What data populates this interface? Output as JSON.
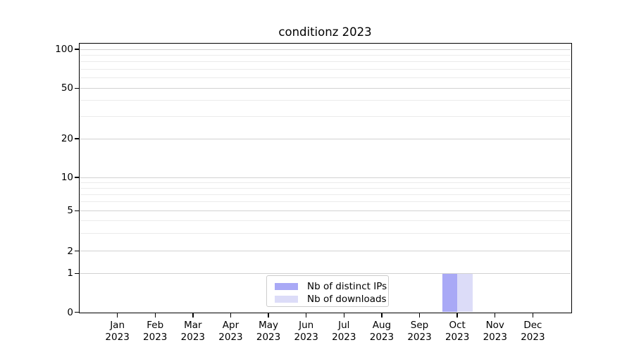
{
  "figure": {
    "background": "#ffffff"
  },
  "chart_data": {
    "type": "bar",
    "title": "conditionz 2023",
    "categories": [
      "Jan\n2023",
      "Feb\n2023",
      "Mar\n2023",
      "Apr\n2023",
      "May\n2023",
      "Jun\n2023",
      "Jul\n2023",
      "Aug\n2023",
      "Sep\n2023",
      "Oct\n2023",
      "Nov\n2023",
      "Dec\n2023"
    ],
    "series": [
      {
        "name": "Nb of distinct IPs",
        "color": "#a9a9f6",
        "values": [
          0,
          0,
          0,
          0,
          0,
          0,
          0,
          0,
          0,
          1,
          0,
          0
        ]
      },
      {
        "name": "Nb of downloads",
        "color": "#dcdcf8",
        "values": [
          0,
          0,
          0,
          0,
          0,
          0,
          0,
          0,
          0,
          1,
          0,
          0
        ]
      }
    ],
    "xlabel": "",
    "ylabel": "",
    "yscale": "symlog",
    "y_ticks": [
      0,
      1,
      2,
      5,
      10,
      20,
      50,
      100
    ],
    "y_minor_ticks": [
      3,
      4,
      6,
      7,
      8,
      9,
      30,
      40,
      60,
      70,
      80,
      90
    ],
    "ylim": [
      0,
      110
    ],
    "grid": "horizontal major and minor",
    "legend_position": "lower center inside plot"
  }
}
